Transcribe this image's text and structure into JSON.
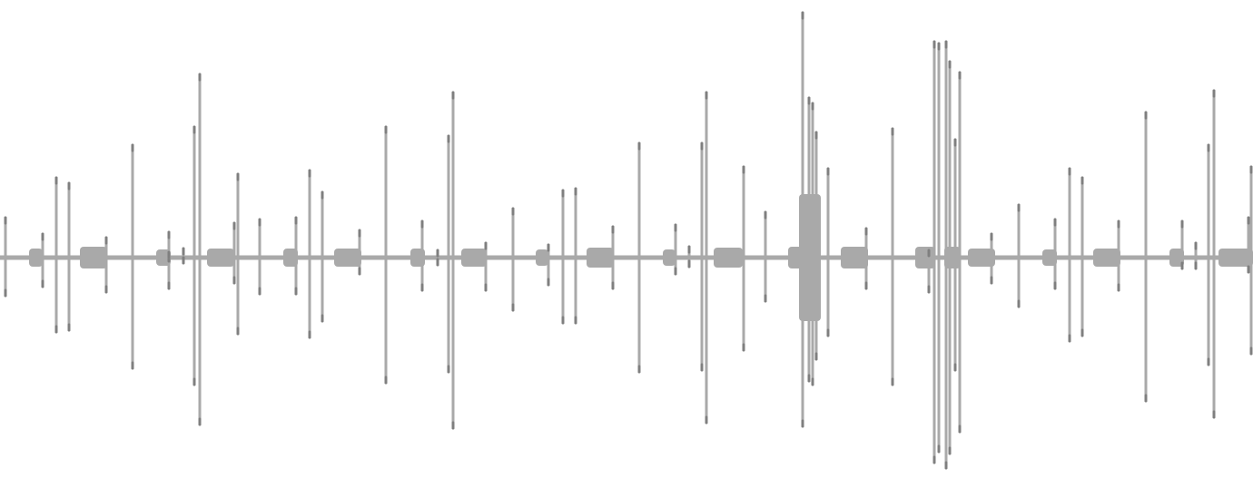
{
  "waveform": {
    "icon": "audio-waveform",
    "colors": {
      "background": "#ffffff",
      "wave": "#a9a9a9",
      "wave_tip": "#7f7f7f"
    }
  }
}
